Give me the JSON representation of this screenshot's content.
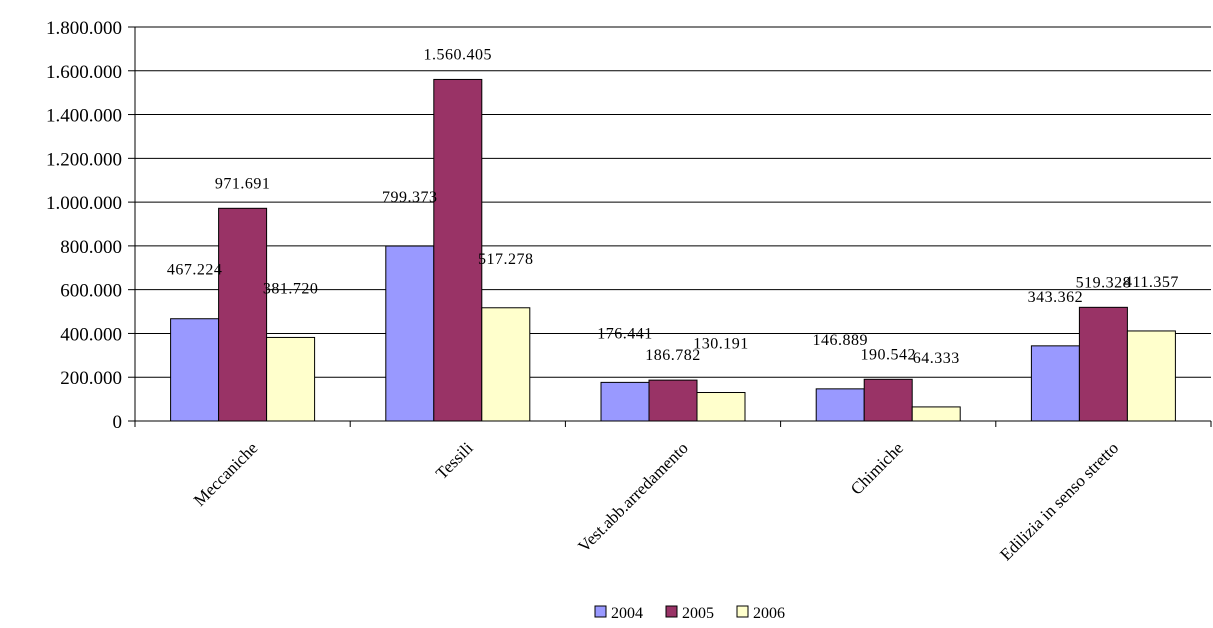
{
  "chart_data": {
    "type": "bar",
    "categories": [
      "Meccaniche",
      "Tessili",
      "Vest.abb.arredamento",
      "Chimiche",
      "Edilizia in senso stretto"
    ],
    "series": [
      {
        "name": "2004",
        "values": [
          467224,
          799373,
          176441,
          146889,
          343362
        ],
        "labels": [
          "467.224",
          "799.373",
          "176.441",
          "146.889",
          "343.362"
        ],
        "color": "#9999ff"
      },
      {
        "name": "2005",
        "values": [
          971691,
          1560405,
          186782,
          190542,
          519328
        ],
        "labels": [
          "971.691",
          "1.560.405",
          "186.782",
          "190.542",
          "519.328"
        ],
        "color": "#993366"
      },
      {
        "name": "2006",
        "values": [
          381720,
          517278,
          130191,
          64333,
          411357
        ],
        "labels": [
          "381.720",
          "517.278",
          "130.191",
          "64.333",
          "411.357"
        ],
        "color": "#ffffcc"
      }
    ],
    "ylim": [
      0,
      1800000
    ],
    "yticks": [
      0,
      200000,
      400000,
      600000,
      800000,
      1000000,
      1200000,
      1400000,
      1600000,
      1800000
    ],
    "ytick_labels": [
      "0",
      "200.000",
      "400.000",
      "600.000",
      "800.000",
      "1.000.000",
      "1.200.000",
      "1.400.000",
      "1.600.000",
      "1.800.000"
    ],
    "grid": true,
    "legend_position": "bottom",
    "title": "",
    "xlabel": "",
    "ylabel": ""
  }
}
